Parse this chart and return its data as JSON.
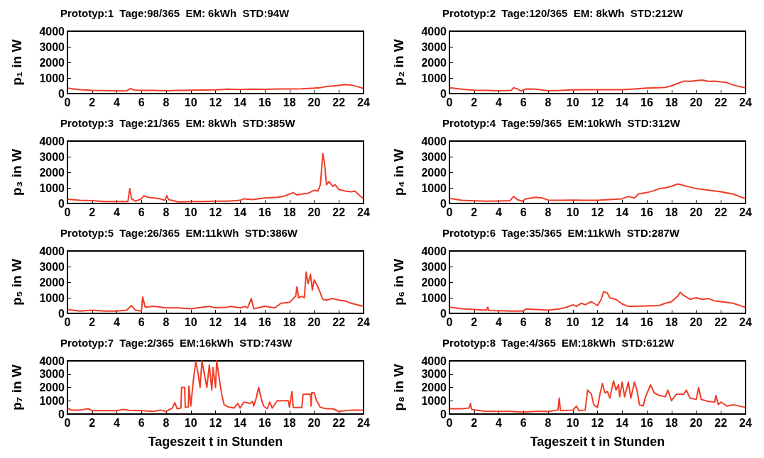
{
  "chart_data": [
    {
      "type": "line",
      "title": "Prototyp:1  Tage:98/365  EM: 6kWh  STD:94W",
      "ylabel": "p₁ in W",
      "xlim": [
        0,
        24
      ],
      "xticks": [
        0,
        2,
        4,
        6,
        8,
        10,
        12,
        14,
        16,
        18,
        20,
        22,
        24
      ],
      "ylim": [
        0,
        4000
      ],
      "yticks": [
        0,
        1000,
        2000,
        3000,
        4000
      ],
      "grid": false,
      "series": [
        {
          "color": "#f03c28",
          "x": [
            0,
            0.5,
            1,
            2,
            3,
            4,
            4.8,
            5.1,
            5.4,
            6,
            7,
            8,
            9,
            10,
            11,
            12,
            13,
            14,
            15,
            16,
            17,
            18,
            19,
            20,
            20.5,
            21,
            22,
            22.5,
            23,
            23.5,
            24
          ],
          "values": [
            350,
            300,
            250,
            200,
            190,
            170,
            180,
            320,
            230,
            200,
            210,
            180,
            200,
            220,
            230,
            240,
            280,
            260,
            280,
            270,
            290,
            300,
            310,
            350,
            380,
            450,
            520,
            580,
            550,
            450,
            330
          ]
        }
      ]
    },
    {
      "type": "line",
      "title": "Prototyp:2  Tage:120/365  EM: 8kWh  STD:212W",
      "ylabel": "p₂ in W",
      "xlim": [
        0,
        24
      ],
      "xticks": [
        0,
        2,
        4,
        6,
        8,
        10,
        12,
        14,
        16,
        18,
        20,
        22,
        24
      ],
      "ylim": [
        0,
        4000
      ],
      "yticks": [
        0,
        1000,
        2000,
        3000,
        4000
      ],
      "grid": false,
      "series": [
        {
          "color": "#f03c28",
          "x": [
            0,
            1,
            2,
            3,
            4,
            5,
            5.2,
            5.5,
            5.8,
            6.2,
            7,
            8,
            9,
            10,
            11,
            12,
            13,
            14,
            15,
            16,
            17,
            17.5,
            18,
            18.5,
            19,
            19.5,
            20,
            20.5,
            21,
            21.5,
            22,
            22.5,
            23,
            23.5,
            24
          ],
          "values": [
            380,
            280,
            220,
            200,
            180,
            200,
            380,
            300,
            170,
            290,
            280,
            180,
            200,
            240,
            250,
            250,
            250,
            250,
            300,
            350,
            380,
            400,
            500,
            650,
            800,
            780,
            830,
            860,
            780,
            800,
            750,
            700,
            550,
            450,
            370
          ]
        }
      ]
    },
    {
      "type": "line",
      "title": "Prototyp:3  Tage:21/365  EM: 8kWh  STD:385W",
      "ylabel": "p₃ in W",
      "xlim": [
        0,
        24
      ],
      "xticks": [
        0,
        2,
        4,
        6,
        8,
        10,
        12,
        14,
        16,
        18,
        20,
        22,
        24
      ],
      "ylim": [
        0,
        4000
      ],
      "yticks": [
        0,
        1000,
        2000,
        3000,
        4000
      ],
      "grid": false,
      "series": [
        {
          "color": "#f03c28",
          "x": [
            0,
            1,
            2,
            3,
            4,
            4.9,
            5.05,
            5.2,
            5.5,
            6,
            6.2,
            6.5,
            7,
            7.5,
            7.9,
            8.05,
            8.2,
            9,
            10,
            11,
            12,
            13,
            14,
            14.3,
            15,
            16,
            17,
            17.5,
            18,
            18.3,
            18.6,
            19,
            19.5,
            20,
            20.3,
            20.5,
            20.7,
            20.85,
            21,
            21.2,
            21.5,
            21.7,
            22,
            22.5,
            23,
            23.3,
            23.7,
            24
          ],
          "values": [
            270,
            200,
            180,
            120,
            130,
            120,
            950,
            300,
            150,
            300,
            500,
            400,
            350,
            300,
            200,
            500,
            250,
            100,
            120,
            130,
            150,
            150,
            200,
            300,
            250,
            350,
            400,
            450,
            600,
            700,
            550,
            600,
            650,
            850,
            800,
            1200,
            3200,
            2500,
            1200,
            1400,
            1100,
            1200,
            900,
            800,
            750,
            800,
            500,
            300
          ]
        }
      ]
    },
    {
      "type": "line",
      "title": "Prototyp:4  Tage:59/365  EM:10kWh  STD:312W",
      "ylabel": "p₄ in W",
      "xlim": [
        0,
        24
      ],
      "xticks": [
        0,
        2,
        4,
        6,
        8,
        10,
        12,
        14,
        16,
        18,
        20,
        22,
        24
      ],
      "ylim": [
        0,
        4000
      ],
      "yticks": [
        0,
        1000,
        2000,
        3000,
        4000
      ],
      "grid": false,
      "series": [
        {
          "color": "#f03c28",
          "x": [
            0,
            1,
            2,
            3,
            4,
            4.9,
            5.2,
            5.5,
            5.9,
            6.2,
            7,
            7.5,
            8,
            9,
            10,
            11,
            12,
            13,
            14,
            14.5,
            15,
            15.3,
            16,
            16.5,
            17,
            17.5,
            18,
            18.5,
            18.8,
            19,
            19.5,
            20,
            21,
            22,
            23,
            24
          ],
          "values": [
            330,
            200,
            170,
            150,
            160,
            180,
            450,
            250,
            150,
            300,
            400,
            350,
            220,
            200,
            220,
            200,
            200,
            250,
            300,
            450,
            350,
            600,
            700,
            800,
            950,
            1000,
            1100,
            1250,
            1200,
            1150,
            1050,
            950,
            850,
            750,
            600,
            300
          ]
        }
      ]
    },
    {
      "type": "line",
      "title": "Prototyp:5  Tage:26/365  EM:11kWh  STD:386W",
      "ylabel": "p₅ in W",
      "xlim": [
        0,
        24
      ],
      "xticks": [
        0,
        2,
        4,
        6,
        8,
        10,
        12,
        14,
        16,
        18,
        20,
        22,
        24
      ],
      "ylim": [
        0,
        4000
      ],
      "yticks": [
        0,
        1000,
        2000,
        3000,
        4000
      ],
      "grid": false,
      "series": [
        {
          "color": "#f03c28",
          "x": [
            0,
            1,
            2,
            3,
            4,
            4.8,
            5.2,
            5.5,
            6,
            6.1,
            6.3,
            7,
            8,
            9,
            10,
            11,
            11.5,
            12,
            13,
            13.2,
            14,
            14.4,
            14.6,
            14.9,
            15.1,
            16,
            16.8,
            17.3,
            18,
            18.5,
            18.6,
            18.75,
            19,
            19.2,
            19.35,
            19.5,
            19.7,
            19.85,
            20,
            20.3,
            20.7,
            21,
            21.5,
            22,
            22.5,
            23,
            24
          ],
          "values": [
            250,
            150,
            200,
            150,
            150,
            200,
            500,
            200,
            150,
            1050,
            400,
            450,
            350,
            350,
            300,
            400,
            450,
            350,
            400,
            450,
            350,
            450,
            350,
            950,
            300,
            450,
            350,
            650,
            700,
            1100,
            1700,
            1000,
            1100,
            1000,
            2650,
            1900,
            2500,
            1500,
            2150,
            1700,
            900,
            850,
            950,
            850,
            800,
            650,
            450
          ]
        }
      ]
    },
    {
      "type": "line",
      "title": "Prototyp:6  Tage:35/365  EM:11kWh  STD:287W",
      "ylabel": "p₆ in W",
      "xlim": [
        0,
        24
      ],
      "xticks": [
        0,
        2,
        4,
        6,
        8,
        10,
        12,
        14,
        16,
        18,
        20,
        22,
        24
      ],
      "ylim": [
        0,
        4000
      ],
      "yticks": [
        0,
        1000,
        2000,
        3000,
        4000
      ],
      "grid": false,
      "series": [
        {
          "color": "#f03c28",
          "x": [
            0,
            1,
            2,
            3,
            3.1,
            3.2,
            4,
            5,
            6,
            6.2,
            7,
            8,
            9,
            9.5,
            10,
            10.3,
            10.7,
            11,
            11.5,
            12,
            12.3,
            12.5,
            12.8,
            13,
            13.5,
            14,
            14.5,
            15,
            16,
            17,
            17.5,
            18,
            18.5,
            18.7,
            19,
            19.5,
            20,
            20.5,
            21,
            21.5,
            22,
            23,
            24
          ],
          "values": [
            400,
            300,
            250,
            200,
            400,
            180,
            170,
            150,
            150,
            280,
            250,
            200,
            300,
            400,
            550,
            450,
            650,
            550,
            750,
            500,
            900,
            1400,
            1300,
            1000,
            900,
            600,
            450,
            450,
            480,
            500,
            650,
            750,
            1100,
            1350,
            1150,
            900,
            1000,
            900,
            950,
            800,
            750,
            650,
            380
          ]
        }
      ]
    },
    {
      "type": "line",
      "title": "Prototyp:7  Tage:2/365  EM:16kWh  STD:743W",
      "xlabel": "Tageszeit t in Stunden",
      "ylabel": "p₇ in W",
      "xlim": [
        0,
        24
      ],
      "xticks": [
        0,
        2,
        4,
        6,
        8,
        10,
        12,
        14,
        16,
        18,
        20,
        22,
        24
      ],
      "ylim": [
        0,
        4000
      ],
      "yticks": [
        0,
        1000,
        2000,
        3000,
        4000
      ],
      "grid": false,
      "series": [
        {
          "color": "#f03c28",
          "x": [
            0,
            0.3,
            1,
            1.7,
            2,
            3,
            4,
            4.5,
            5,
            6,
            7,
            7.5,
            8,
            8.5,
            8.7,
            8.9,
            9.2,
            9.25,
            9.5,
            9.55,
            9.8,
            9.85,
            10,
            10.2,
            10.4,
            10.6,
            10.75,
            10.9,
            11.1,
            11.3,
            11.5,
            11.7,
            11.8,
            12,
            12.1,
            12.3,
            12.5,
            12.7,
            13,
            13.5,
            13.8,
            14,
            14.3,
            14.8,
            15,
            15.1,
            15.3,
            15.5,
            15.7,
            15.9,
            16.2,
            16.4,
            16.6,
            17,
            17.5,
            17.9,
            18,
            18.2,
            18.3,
            18.5,
            19,
            19.1,
            19.7,
            19.75,
            19.8,
            20,
            20.2,
            20.5,
            21,
            21.5,
            22,
            23,
            24
          ],
          "values": [
            450,
            300,
            300,
            400,
            250,
            250,
            250,
            350,
            280,
            250,
            200,
            300,
            200,
            450,
            850,
            400,
            450,
            2000,
            2000,
            500,
            550,
            2100,
            600,
            2500,
            3950,
            3000,
            2000,
            4000,
            3000,
            2000,
            3700,
            1800,
            3500,
            2000,
            4000,
            2700,
            1500,
            700,
            550,
            450,
            800,
            450,
            900,
            800,
            950,
            600,
            1200,
            2000,
            1200,
            600,
            400,
            900,
            450,
            1000,
            1000,
            1000,
            500,
            1700,
            500,
            500,
            500,
            1500,
            1500,
            600,
            1600,
            1600,
            1000,
            500,
            400,
            400,
            200,
            300,
            300
          ]
        }
      ]
    },
    {
      "type": "line",
      "title": "Prototyp:8  Tage:4/365  EM:18kWh  STD:612W",
      "xlabel": "Tageszeit t in Stunden",
      "ylabel": "p₈ in W",
      "xlim": [
        0,
        24
      ],
      "xticks": [
        0,
        2,
        4,
        6,
        8,
        10,
        12,
        14,
        16,
        18,
        20,
        22,
        24
      ],
      "ylim": [
        0,
        4000
      ],
      "yticks": [
        0,
        1000,
        2000,
        3000,
        4000
      ],
      "grid": false,
      "series": [
        {
          "color": "#f03c28",
          "x": [
            0,
            1,
            1.6,
            1.7,
            1.8,
            2.5,
            3,
            4,
            5,
            6,
            7,
            8,
            8.8,
            8.9,
            9,
            10,
            10.3,
            10.5,
            11,
            11.2,
            11.5,
            11.7,
            12,
            12.2,
            12.4,
            12.6,
            12.8,
            13,
            13.3,
            13.5,
            13.7,
            13.8,
            14,
            14.2,
            14.5,
            14.7,
            15,
            15.2,
            15.4,
            15.7,
            15.9,
            16.3,
            16.6,
            17,
            17.5,
            17.7,
            18,
            18.4,
            19,
            19.2,
            19.5,
            20,
            20.2,
            20.4,
            21,
            21.5,
            21.6,
            21.8,
            22,
            22.5,
            23,
            24
          ],
          "values": [
            400,
            400,
            450,
            800,
            350,
            250,
            200,
            200,
            200,
            150,
            200,
            200,
            300,
            1200,
            250,
            300,
            600,
            250,
            300,
            1800,
            1500,
            700,
            500,
            1500,
            2300,
            1600,
            1700,
            1200,
            2500,
            1800,
            2200,
            1300,
            2400,
            1300,
            2400,
            1200,
            2400,
            1800,
            700,
            600,
            1300,
            2200,
            1600,
            1400,
            1300,
            1800,
            1000,
            1500,
            1500,
            1800,
            1200,
            1100,
            2000,
            1100,
            950,
            900,
            1400,
            700,
            900,
            600,
            700,
            500
          ]
        }
      ]
    }
  ]
}
